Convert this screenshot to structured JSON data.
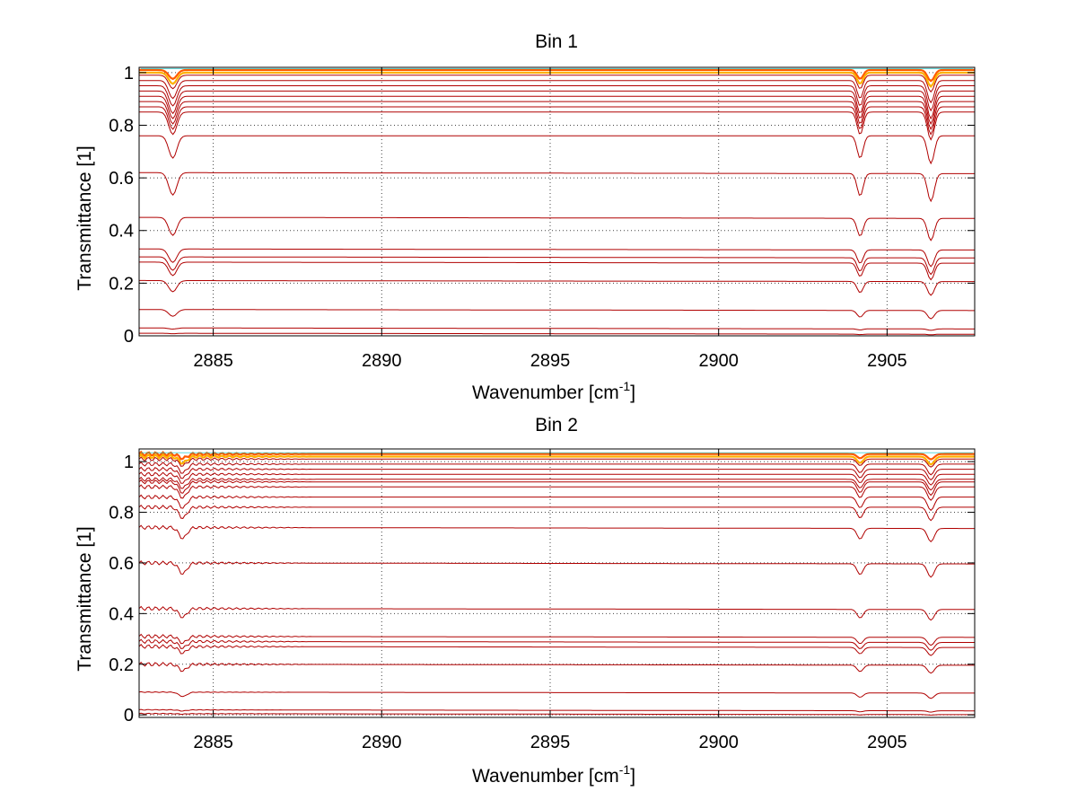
{
  "colors": {
    "series_main": "#b00000",
    "series_top": "#ff5a00",
    "series_top_alt": "#ffb000",
    "series_cyan": "#00bfbf",
    "grid": "#444444",
    "axis": "#000000"
  },
  "chart_data": [
    {
      "type": "line",
      "title": "Bin 1",
      "xlabel": "Wavenumber [cm",
      "xlabel_sup": "-1",
      "xlabel_end": "]",
      "ylabel": "Transmittance [1]",
      "xlim": [
        2882.8,
        2907.6
      ],
      "ylim": [
        0,
        1.02
      ],
      "xticks": [
        2885,
        2890,
        2895,
        2900,
        2905
      ],
      "xtick_labels": [
        "2885",
        "2890",
        "2895",
        "2900",
        "2905"
      ],
      "yticks": [
        0,
        0.2,
        0.4,
        0.6,
        0.8,
        1
      ],
      "ytick_labels": [
        "0",
        "0.2",
        "0.4",
        "0.6",
        "0.8",
        "1"
      ],
      "grid": true,
      "dip_centers": [
        2883.8,
        2904.2,
        2906.3
      ],
      "series_levels": [
        1.01,
        1.0,
        0.99,
        0.97,
        0.95,
        0.93,
        0.91,
        0.89,
        0.87,
        0.85,
        0.76,
        0.62,
        0.45,
        0.33,
        0.3,
        0.28,
        0.21,
        0.1,
        0.03,
        0.01
      ],
      "series_depths": [
        0.04,
        0.05,
        0.06,
        0.08,
        0.09,
        0.1,
        0.1,
        0.1,
        0.1,
        0.1,
        0.1,
        0.1,
        0.08,
        0.06,
        0.06,
        0.06,
        0.05,
        0.03,
        0.005,
        0.002
      ]
    },
    {
      "type": "line",
      "title": "Bin 2",
      "xlabel": "Wavenumber [cm",
      "xlabel_sup": "-1",
      "xlabel_end": "]",
      "ylabel": "Transmittance [1]",
      "xlim": [
        2882.8,
        2907.6
      ],
      "ylim": [
        -0.01,
        1.05
      ],
      "xticks": [
        2885,
        2890,
        2895,
        2900,
        2905
      ],
      "xtick_labels": [
        "2885",
        "2890",
        "2895",
        "2900",
        "2905"
      ],
      "yticks": [
        0,
        0.2,
        0.4,
        0.6,
        0.8,
        1
      ],
      "ytick_labels": [
        "0",
        "0.2",
        "0.4",
        "0.6",
        "0.8",
        "1"
      ],
      "grid": true,
      "dip_centers": [
        2884.1,
        2904.2,
        2906.3
      ],
      "series_levels": [
        1.03,
        1.02,
        1.01,
        0.99,
        0.97,
        0.95,
        0.93,
        0.92,
        0.9,
        0.86,
        0.82,
        0.74,
        0.6,
        0.42,
        0.31,
        0.29,
        0.27,
        0.2,
        0.09,
        0.02,
        0.005
      ],
      "series_depths": [
        0.02,
        0.03,
        0.03,
        0.04,
        0.04,
        0.04,
        0.04,
        0.05,
        0.05,
        0.05,
        0.05,
        0.05,
        0.05,
        0.04,
        0.03,
        0.03,
        0.03,
        0.03,
        0.02,
        0.005,
        0.002
      ]
    }
  ]
}
